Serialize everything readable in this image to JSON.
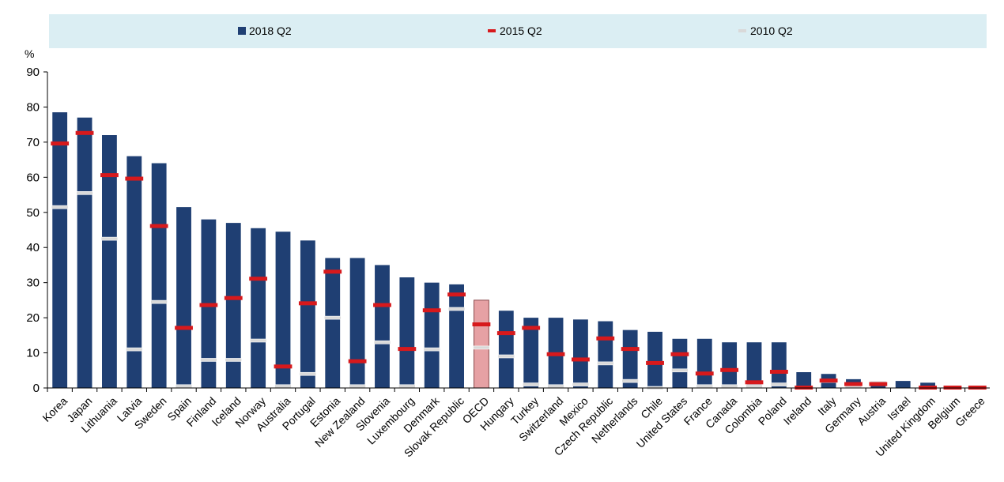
{
  "chart_data": {
    "type": "bar",
    "y_unit": "%",
    "ylim": [
      0,
      90
    ],
    "yticks": [
      0,
      10,
      20,
      30,
      40,
      50,
      60,
      70,
      80,
      90
    ],
    "grid": false,
    "legend_placement": "top",
    "colors": {
      "bar": "#1f3f73",
      "highlight_bar": "#e6a1a4",
      "marker_2015": "#d7191c",
      "marker_2010": "#d9d9d9",
      "legend_bg": "#dbeef3"
    },
    "highlight_category": "OECD",
    "categories": [
      "Korea",
      "Japan",
      "Lithuania",
      "Latvia",
      "Sweden",
      "Spain",
      "Finland",
      "Iceland",
      "Norway",
      "Australia",
      "Portugal",
      "Estonia",
      "New Zealand",
      "Slovenia",
      "Luxembourg",
      "Denmark",
      "Slovak Republic",
      "OECD",
      "Hungary",
      "Turkey",
      "Switzerland",
      "Mexico",
      "Czech Republic",
      "Netherlands",
      "Chile",
      "United States",
      "France",
      "Canada",
      "Colombia",
      "Poland",
      "Ireland",
      "Italy",
      "Germany",
      "Austria",
      "Israel",
      "United Kingdom",
      "Belgium",
      "Greece"
    ],
    "series": [
      {
        "name": "2018 Q2",
        "kind": "bar",
        "values": [
          78.5,
          77,
          72,
          66,
          64,
          51.5,
          48,
          47,
          45.5,
          44.5,
          42,
          37,
          37,
          35,
          31.5,
          30,
          29.5,
          25,
          22,
          20,
          20,
          19.5,
          19,
          16.5,
          16,
          14,
          14,
          13,
          13,
          13,
          4.5,
          4,
          2.5,
          2,
          2,
          1.5,
          0.3,
          0.3
        ]
      },
      {
        "name": "2015 Q2",
        "kind": "marker",
        "values": [
          69.5,
          72.5,
          60.5,
          59.5,
          46,
          17,
          23.5,
          25.5,
          31,
          6,
          24,
          33,
          7.5,
          23.5,
          11,
          22,
          26.5,
          18,
          15.5,
          17,
          9.5,
          8,
          14,
          11,
          7,
          9.5,
          4,
          5,
          1.5,
          4.5,
          0,
          2,
          1,
          1,
          null,
          0,
          0,
          0
        ]
      },
      {
        "name": "2010 Q2",
        "kind": "marker",
        "values": [
          51.5,
          55.5,
          42.5,
          11,
          24.5,
          0.5,
          8,
          8,
          13.5,
          0.5,
          4,
          20,
          0.5,
          13,
          0.5,
          11,
          22.5,
          11.5,
          9,
          1,
          0.5,
          1,
          7,
          2,
          0,
          5,
          0.5,
          0.5,
          0.5,
          1,
          null,
          2,
          0.5,
          1.5,
          null,
          null,
          0,
          0
        ]
      }
    ]
  }
}
